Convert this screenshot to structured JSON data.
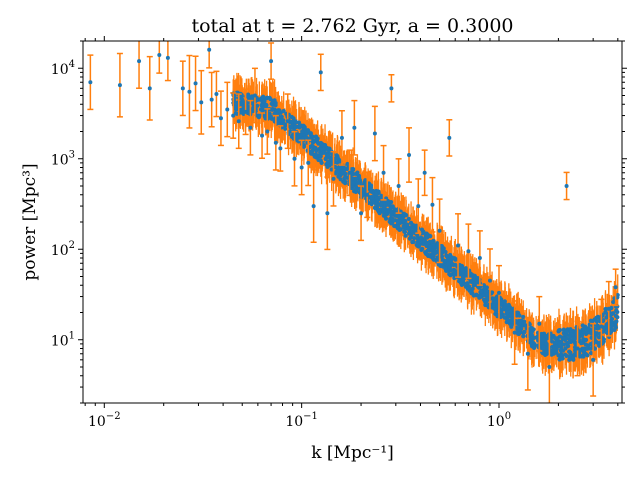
{
  "chart_data": {
    "type": "scatter",
    "title": "total at t = 2.762 Gyr, a = 0.3000",
    "xlabel": "k [Mpc⁻¹]",
    "ylabel": "power [Mpc³]",
    "xscale": "log",
    "yscale": "log",
    "xlim": [
      0.0078,
      4.2
    ],
    "ylim": [
      2.0,
      20000
    ],
    "grid": false,
    "x_ticks": [
      {
        "value": 0.01,
        "base": "10",
        "exp": "−2"
      },
      {
        "value": 0.1,
        "base": "10",
        "exp": "−1"
      },
      {
        "value": 1,
        "base": "10",
        "exp": "0"
      }
    ],
    "y_ticks": [
      {
        "value": 10,
        "base": "10",
        "exp": "1"
      },
      {
        "value": 100,
        "base": "10",
        "exp": "2"
      },
      {
        "value": 1000,
        "base": "10",
        "exp": "3"
      },
      {
        "value": 10000,
        "base": "10",
        "exp": "4"
      }
    ],
    "colors": {
      "points": "#1f77b4",
      "errorbars": "#ff7f0e"
    },
    "series": [
      {
        "points": [
          [
            0.0085,
            7000,
            0.3
          ],
          [
            0.012,
            6500,
            0.35
          ],
          [
            0.015,
            12000,
            0.3
          ],
          [
            0.017,
            6000,
            0.35
          ],
          [
            0.019,
            14000,
            0.2
          ],
          [
            0.021,
            13000,
            0.25
          ],
          [
            0.025,
            6000,
            0.3
          ],
          [
            0.027,
            5500,
            0.4
          ],
          [
            0.029,
            6800,
            0.3
          ],
          [
            0.031,
            4200,
            0.35
          ],
          [
            0.034,
            16000,
            0.2
          ],
          [
            0.035,
            4500,
            0.3
          ],
          [
            0.037,
            5200,
            0.25
          ],
          [
            0.039,
            2800,
            0.3
          ],
          [
            0.042,
            3500,
            0.3
          ],
          [
            0.045,
            3000,
            0.25
          ],
          [
            0.048,
            2600,
            0.3
          ],
          [
            0.052,
            3300,
            0.25
          ],
          [
            0.055,
            2200,
            0.3
          ],
          [
            0.058,
            5000,
            0.3
          ],
          [
            0.063,
            1800,
            0.25
          ],
          [
            0.067,
            2000,
            0.25
          ],
          [
            0.07,
            12000,
            0.2
          ],
          [
            0.074,
            1500,
            0.3
          ],
          [
            0.078,
            1300,
            0.25
          ],
          [
            0.085,
            2600,
            0.3
          ],
          [
            0.092,
            1000,
            0.3
          ],
          [
            0.1,
            800,
            0.3
          ],
          [
            0.108,
            900,
            0.25
          ],
          [
            0.115,
            300,
            0.4
          ],
          [
            0.125,
            9000,
            0.2
          ],
          [
            0.135,
            250,
            0.4
          ],
          [
            0.145,
            600,
            0.3
          ],
          [
            0.16,
            1700,
            0.3
          ],
          [
            0.175,
            700,
            0.25
          ],
          [
            0.185,
            2200,
            0.3
          ],
          [
            0.2,
            250,
            0.3
          ],
          [
            0.215,
            400,
            0.25
          ],
          [
            0.235,
            1900,
            0.3
          ],
          [
            0.26,
            700,
            0.3
          ],
          [
            0.285,
            6000,
            0.15
          ],
          [
            0.31,
            500,
            0.3
          ],
          [
            0.35,
            1100,
            0.3
          ],
          [
            0.39,
            300,
            0.3
          ],
          [
            0.42,
            700,
            0.25
          ],
          [
            0.46,
            310,
            0.3
          ],
          [
            0.5,
            160,
            0.35
          ],
          [
            0.56,
            1700,
            0.2
          ],
          [
            0.62,
            110,
            0.35
          ],
          [
            0.7,
            95,
            0.3
          ],
          [
            0.8,
            80,
            0.3
          ],
          [
            0.9,
            45,
            0.35
          ],
          [
            1.0,
            33,
            0.3
          ],
          [
            1.2,
            12,
            0.35
          ],
          [
            1.4,
            7,
            0.4
          ],
          [
            1.6,
            15,
            0.3
          ],
          [
            1.8,
            5,
            0.4
          ],
          [
            2.2,
            500,
            0.15
          ],
          [
            2.5,
            8,
            0.3
          ],
          [
            3.0,
            6,
            0.4
          ],
          [
            3.3,
            14,
            0.3
          ],
          [
            3.6,
            22,
            0.3
          ],
          [
            3.9,
            38,
            0.2
          ]
        ]
      }
    ]
  }
}
